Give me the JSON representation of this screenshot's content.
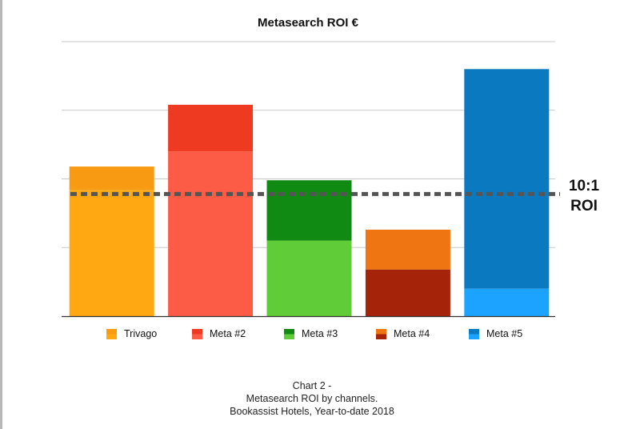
{
  "chart_data": {
    "type": "bar",
    "title": "Metasearch ROI €",
    "xlabel": "",
    "ylabel": "",
    "ylim": [
      0,
      20
    ],
    "grid": true,
    "categories": [
      "Trivago",
      "Meta #2",
      "Meta #3",
      "Meta #4",
      "Meta #5"
    ],
    "values": [
      10.9,
      15.4,
      9.9,
      6.3,
      18.0
    ],
    "bands": [
      {
        "category": "Trivago",
        "split": 9.2
      },
      {
        "category": "Meta #2",
        "split": 12.0
      },
      {
        "category": "Meta #3",
        "split": 5.5
      },
      {
        "category": "Meta #4",
        "split": 3.4
      },
      {
        "category": "Meta #5",
        "split": 2.0
      }
    ],
    "reference_line": {
      "value": 8.9,
      "label_line1": "10:1",
      "label_line2": "ROI",
      "style": "dashed"
    },
    "colors": {
      "Trivago": {
        "top": "#f89a12",
        "bottom": "#ffa812"
      },
      "Meta #2": {
        "top": "#ef3a22",
        "bottom": "#fc5b46"
      },
      "Meta #3": {
        "top": "#108a12",
        "bottom": "#5fcc38"
      },
      "Meta #4": {
        "top": "#ef7512",
        "bottom": "#a52308"
      },
      "Meta #5": {
        "top": "#0a79c0",
        "bottom": "#1ba3ff"
      }
    },
    "legend_placement": "bottom",
    "legend": [
      "Trivago",
      "Meta #2",
      "Meta #3",
      "Meta #4",
      "Meta #5"
    ]
  },
  "caption": {
    "line1": "Chart 2 -",
    "line2": "Metasearch ROI by channels.",
    "line3": "Bookassist Hotels, Year-to-date 2018"
  }
}
